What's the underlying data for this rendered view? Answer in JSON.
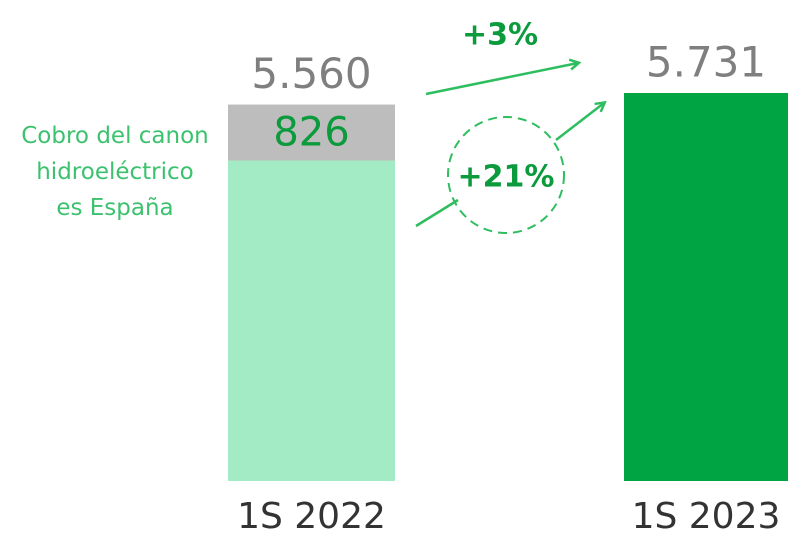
{
  "chart_data": {
    "type": "bar",
    "stacked": true,
    "categories": [
      "1S 2022",
      "1S 2023"
    ],
    "series": [
      {
        "values": [
          4734,
          5731
        ],
        "colors": [
          "#a3ebc4",
          "#00a443"
        ]
      },
      {
        "name": "Cobro del canon hidroeléctrico es España",
        "color": "#bdbdbd",
        "label_color": "#0b9a3c",
        "values": [
          826,
          null
        ]
      }
    ],
    "totals": {
      "values": [
        5560,
        5731
      ],
      "value_labels": [
        "5.560",
        "5.731"
      ],
      "color": "#7f7f7f"
    },
    "annotations": [
      "+3%",
      "+21%"
    ],
    "annotation_color": "#0b9a3c",
    "legend_color": "#3cc26e"
  }
}
